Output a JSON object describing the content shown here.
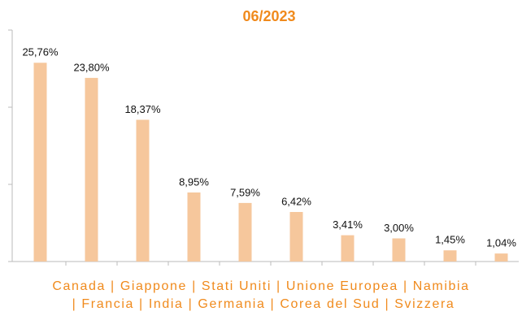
{
  "chart_data": {
    "type": "bar",
    "title": "06/2023",
    "categories": [
      "Canada",
      "Giappone",
      "Stati Uniti",
      "Unione Europea",
      "Namibia",
      "Francia",
      "India",
      "Germania",
      "Corea del Sud",
      "Svizzera"
    ],
    "values": [
      25.76,
      23.8,
      18.37,
      8.95,
      7.59,
      6.42,
      3.41,
      3.0,
      1.45,
      1.04
    ],
    "value_labels": [
      "25,76%",
      "23,80%",
      "18,37%",
      "8,95%",
      "7,59%",
      "6,42%",
      "3,41%",
      "3,00%",
      "1,45%",
      "1,04%"
    ],
    "color": "#f6c79c",
    "ylim": [
      0,
      30
    ],
    "yticks": [
      0,
      10,
      20,
      30
    ],
    "grid": false
  }
}
